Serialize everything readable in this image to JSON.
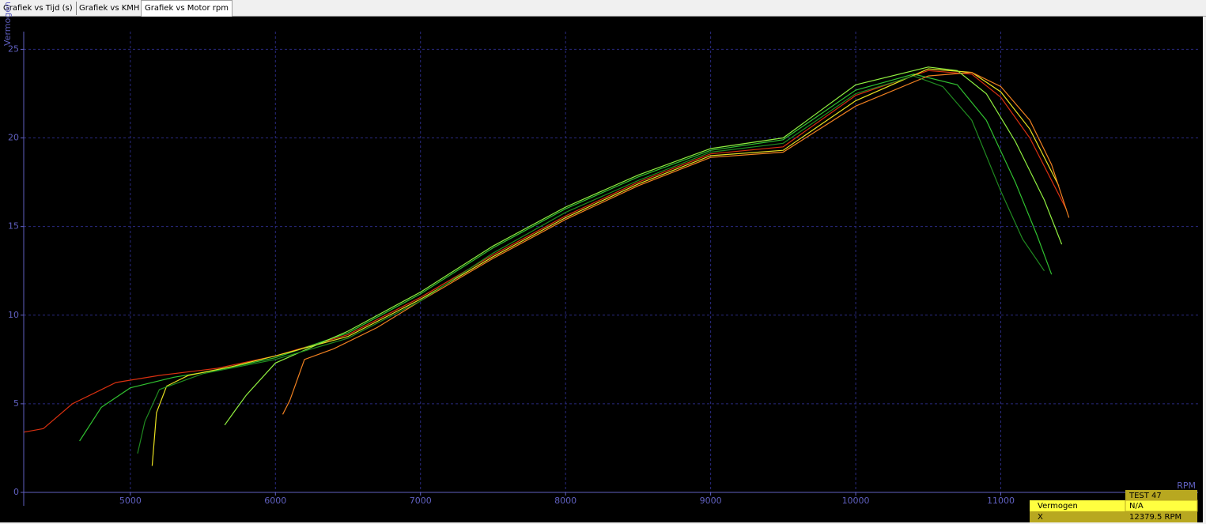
{
  "tabs": [
    "Grafiek vs Tijd (s)",
    "Grafiek vs KMH",
    "Grafiek vs Motor rpm"
  ],
  "chart_data": {
    "type": "line",
    "x_label": "RPM",
    "y_label": "Vermogen",
    "xlim": [
      4265,
      12360
    ],
    "ylim": [
      0,
      26
    ],
    "xticks": [
      5000,
      6000,
      7000,
      8000,
      9000,
      10000,
      11000
    ],
    "yticks": [
      0,
      5,
      10,
      15,
      20,
      25
    ],
    "grid": true,
    "series": [
      {
        "color": "#d83010",
        "x": [
          4265,
          4400,
          4600,
          4900,
          5200,
          5600,
          6000,
          6500,
          7000,
          7500,
          8000,
          8500,
          9000,
          9500,
          10000,
          10500,
          10800,
          11000,
          11200,
          11400,
          11450
        ],
        "values": [
          3.4,
          3.6,
          5.0,
          6.2,
          6.6,
          7.0,
          7.7,
          8.9,
          11.0,
          13.4,
          15.6,
          17.5,
          19.1,
          19.5,
          22.4,
          23.8,
          23.6,
          22.3,
          20.0,
          16.8,
          16.0
        ]
      },
      {
        "color": "#30c030",
        "x": [
          4650,
          4800,
          5000,
          5300,
          5600,
          6000,
          6500,
          7000,
          7500,
          8000,
          8500,
          9000,
          9500,
          10000,
          10400,
          10700,
          10900,
          11100,
          11250,
          11350
        ],
        "values": [
          2.9,
          4.8,
          5.9,
          6.5,
          6.9,
          7.6,
          9.0,
          11.2,
          13.8,
          16.0,
          17.8,
          19.3,
          19.9,
          22.7,
          23.6,
          23.0,
          21.0,
          17.5,
          14.5,
          12.3
        ]
      },
      {
        "color": "#e8e020",
        "x": [
          5150,
          5180,
          5250,
          5400,
          5700,
          6000,
          6500,
          7000,
          7500,
          8000,
          8500,
          9000,
          9500,
          10000,
          10500,
          10800,
          11000,
          11200,
          11400
        ],
        "values": [
          1.5,
          4.5,
          6.0,
          6.6,
          7.1,
          7.7,
          8.8,
          10.9,
          13.3,
          15.5,
          17.4,
          19.0,
          19.3,
          22.1,
          23.9,
          23.7,
          22.6,
          20.5,
          17.3
        ]
      },
      {
        "color": "#f08020",
        "x": [
          6050,
          6100,
          6200,
          6400,
          6700,
          7000,
          7500,
          8000,
          8500,
          9000,
          9500,
          10000,
          10500,
          10800,
          11000,
          11200,
          11350,
          11470
        ],
        "values": [
          4.4,
          5.2,
          7.5,
          8.1,
          9.3,
          10.8,
          13.2,
          15.4,
          17.3,
          18.9,
          19.2,
          21.8,
          23.5,
          23.7,
          22.9,
          21.0,
          18.5,
          15.5
        ]
      },
      {
        "color": "#90f040",
        "x": [
          5650,
          5720,
          5800,
          6000,
          6500,
          7000,
          7500,
          8000,
          8500,
          9000,
          9500,
          10000,
          10500,
          10700,
          10900,
          11100,
          11300,
          11420
        ],
        "values": [
          3.8,
          4.6,
          5.5,
          7.3,
          9.1,
          11.3,
          13.9,
          16.1,
          17.9,
          19.4,
          20.0,
          23.0,
          24.0,
          23.8,
          22.5,
          19.8,
          16.5,
          14.0
        ]
      },
      {
        "color": "#208a20",
        "x": [
          5050,
          5100,
          5200,
          5500,
          6000,
          6500,
          7000,
          7500,
          8000,
          8500,
          9000,
          9500,
          10000,
          10400,
          10600,
          10800,
          11000,
          11150,
          11300
        ],
        "values": [
          2.2,
          4.0,
          5.8,
          6.7,
          7.5,
          8.7,
          10.8,
          13.5,
          15.8,
          17.6,
          19.2,
          19.7,
          22.5,
          23.5,
          22.9,
          21.0,
          17.0,
          14.3,
          12.5
        ]
      }
    ]
  },
  "readout": {
    "title": "TEST  47",
    "rows": [
      [
        "Vermogen",
        "N/A"
      ],
      [
        "X",
        "12379.5 RPM"
      ]
    ]
  }
}
